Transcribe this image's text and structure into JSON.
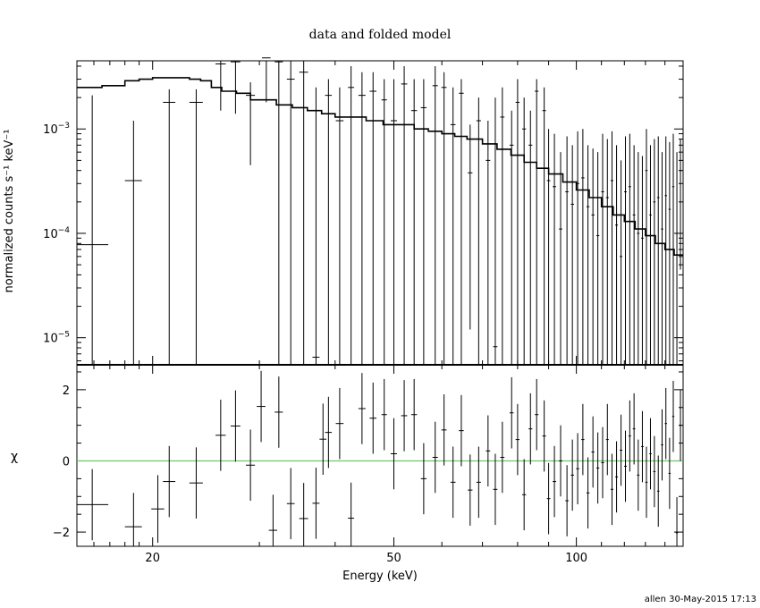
{
  "chart_data": [
    {
      "type": "scatter",
      "panel": "spectrum",
      "title": "data and folded model",
      "xlabel": "",
      "ylabel": "normalized counts s⁻¹ keV⁻¹",
      "x_scale": "log",
      "y_scale": "log",
      "xlim": [
        15,
        150
      ],
      "ylim": [
        5.5e-06,
        0.0045
      ],
      "y_ticks": [
        {
          "value": 1e-05,
          "base": "10",
          "exp": "−5"
        },
        {
          "value": 0.0001,
          "base": "10",
          "exp": "−4"
        },
        {
          "value": 0.001,
          "base": "10",
          "exp": "−3"
        }
      ],
      "data": {
        "x": [
          15.9,
          18.6,
          21.3,
          23.6,
          25.9,
          27.4,
          29.0,
          30.8,
          32.3,
          33.8,
          35.5,
          37.2,
          39.0,
          40.7,
          42.5,
          44.3,
          46.2,
          48.2,
          50.0,
          52.0,
          54.0,
          56.0,
          58.5,
          60.5,
          62.6,
          64.6,
          66.8,
          69.0,
          71.5,
          73.5,
          75.5,
          78.2,
          80.0,
          82.0,
          84.0,
          86.0,
          88.5,
          90.0,
          92.0,
          94.2,
          96.5,
          98.5,
          100.5,
          102.5,
          104.5,
          106.5,
          108.5,
          110.5,
          112.5,
          114.5,
          116.5,
          118.5,
          120.5,
          122.5,
          124.5,
          126.5,
          128.5,
          130.5,
          132.5,
          134.5,
          136.5,
          138.5,
          140.5,
          142.5,
          144.5,
          146.5,
          148.5
        ],
        "xerr": [
          1.0,
          0.6,
          0.5,
          0.6,
          0.5,
          0.5,
          0.5,
          0.5,
          0.5,
          0.5,
          0.6,
          0.5,
          0.5,
          0.6,
          0.5,
          0.6,
          0.6,
          0.5,
          0.6,
          0.6,
          0.6,
          0.6,
          0.6,
          0.6,
          0.6,
          0.6,
          0.6,
          0.6,
          0.6,
          0.6,
          0.6,
          0.6,
          0.6,
          0.6,
          0.6,
          0.6,
          0.6,
          0.6,
          0.6,
          0.6,
          0.6,
          0.6,
          0.6,
          0.6,
          0.6,
          0.6,
          0.6,
          0.6,
          0.6,
          0.6,
          0.6,
          0.6,
          0.6,
          0.6,
          0.6,
          0.6,
          0.6,
          0.6,
          0.6,
          0.6,
          0.6,
          0.6,
          0.6,
          0.6,
          0.6,
          0.6,
          0.6
        ],
        "y": [
          7.8e-05,
          0.00032,
          0.0018,
          0.0018,
          0.0042,
          0.0044,
          0.0021,
          0.0048,
          0.0044,
          0.003,
          0.0035,
          6.5e-06,
          0.0021,
          0.0012,
          0.0025,
          0.0021,
          0.0023,
          0.0019,
          0.0012,
          0.0027,
          0.0015,
          0.0016,
          0.0026,
          0.0025,
          0.0011,
          0.0022,
          0.00038,
          0.0012,
          0.0005,
          8.2e-06,
          0.0013,
          0.0007,
          0.0018,
          0.001,
          0.0007,
          0.0023,
          0.0015,
          0.00032,
          0.00028,
          0.00011,
          0.00025,
          0.00019,
          0.0003,
          0.00034,
          0.00018,
          0.00015,
          9.5e-05,
          0.00025,
          0.00022,
          0.00032,
          0.00012,
          6e-05,
          0.00025,
          0.00028,
          0.00015,
          0.0001,
          9e-05,
          0.0004,
          0.00015,
          0.0002,
          0.00022,
          0.00011,
          0.00023,
          0.00017,
          0.00028,
          0.0001,
          0.0004
        ],
        "ylo": [
          5.5e-06,
          5.5e-06,
          5.5e-06,
          5.5e-06,
          0.0015,
          0.0014,
          0.00045,
          0.0018,
          5.5e-06,
          5.5e-06,
          5.5e-06,
          5.5e-06,
          5.5e-06,
          5.5e-06,
          5.5e-06,
          5.5e-06,
          5.5e-06,
          5.5e-06,
          5.5e-06,
          5.5e-06,
          5.5e-06,
          5.5e-06,
          5.5e-06,
          5.5e-06,
          5.5e-06,
          5.5e-06,
          1.2e-05,
          5.5e-06,
          5.5e-06,
          5.5e-06,
          5.5e-06,
          5.5e-06,
          5.5e-06,
          5.5e-06,
          5.5e-06,
          5.5e-06,
          5.5e-06,
          5.5e-06,
          5.5e-06,
          5.5e-06,
          5.5e-06,
          5.5e-06,
          5.5e-06,
          5.5e-06,
          5.5e-06,
          5.5e-06,
          5.5e-06,
          5.5e-06,
          5.5e-06,
          5.5e-06,
          5.5e-06,
          5.5e-06,
          5.5e-06,
          5.5e-06,
          5.5e-06,
          5.5e-06,
          5.5e-06,
          5.5e-06,
          5.5e-06,
          5.5e-06,
          5.5e-06,
          5.5e-06,
          5.5e-06,
          5.5e-06,
          5.5e-06,
          5.5e-06,
          4.5e-05
        ],
        "yhi": [
          0.0021,
          0.0012,
          0.0024,
          0.0024,
          0.0045,
          0.0045,
          0.0028,
          0.0045,
          0.0045,
          0.0045,
          0.0045,
          0.0025,
          0.003,
          0.0025,
          0.004,
          0.0035,
          0.0035,
          0.003,
          0.003,
          0.004,
          0.003,
          0.003,
          0.004,
          0.0035,
          0.0025,
          0.003,
          0.0011,
          0.002,
          0.0012,
          0.002,
          0.0025,
          0.0015,
          0.003,
          0.002,
          0.0015,
          0.003,
          0.0025,
          0.001,
          0.0009,
          0.0006,
          0.00085,
          0.0007,
          0.00095,
          0.001,
          0.0007,
          0.00065,
          0.0006,
          0.0009,
          0.0008,
          0.00095,
          0.0007,
          0.0005,
          0.00085,
          0.0009,
          0.0007,
          0.0006,
          0.00055,
          0.001,
          0.0007,
          0.0008,
          0.00085,
          0.0006,
          0.00085,
          0.00075,
          0.0009,
          0.0006,
          0.0008
        ]
      },
      "model": {
        "x": [
          15.0,
          16.5,
          18.0,
          19.0,
          20.0,
          21.0,
          22.0,
          23.0,
          24.0,
          25.0,
          26.0,
          27.5,
          29.0,
          30.5,
          32.0,
          34.0,
          36.0,
          38.0,
          40.0,
          42.0,
          45.0,
          48.0,
          51.0,
          54.0,
          57.0,
          60.0,
          63.0,
          66.0,
          70.0,
          74.0,
          78.0,
          82.0,
          86.0,
          90.0,
          95.0,
          100.0,
          105.0,
          110.0,
          115.0,
          120.0,
          125.0,
          130.0,
          135.0,
          140.0,
          145.0,
          150.0
        ],
        "y": [
          0.0025,
          0.0026,
          0.0029,
          0.003,
          0.0031,
          0.0031,
          0.0031,
          0.003,
          0.0029,
          0.0025,
          0.0023,
          0.0022,
          0.0019,
          0.0019,
          0.0017,
          0.0016,
          0.0015,
          0.0014,
          0.0013,
          0.0013,
          0.0012,
          0.0011,
          0.0011,
          0.001,
          0.00095,
          0.0009,
          0.00085,
          0.0008,
          0.00072,
          0.00064,
          0.00056,
          0.00048,
          0.00042,
          0.00037,
          0.00031,
          0.00026,
          0.00022,
          0.00018,
          0.00015,
          0.00013,
          0.00011,
          9.5e-05,
          8e-05,
          7e-05,
          6.2e-05,
          5.5e-05
        ]
      }
    },
    {
      "type": "scatter",
      "panel": "residuals",
      "xlabel": "Energy (keV)",
      "ylabel": "χ",
      "x_scale": "log",
      "xlim": [
        15,
        150
      ],
      "ylim": [
        -2.4,
        2.7
      ],
      "x_ticks": [
        20,
        50,
        100
      ],
      "y_ticks": [
        -2,
        0,
        2
      ],
      "zero_line_color": "#66cc66",
      "data": {
        "x": [
          15.9,
          18.6,
          20.4,
          21.3,
          23.6,
          25.9,
          27.4,
          29.0,
          30.2,
          31.6,
          32.3,
          33.8,
          35.5,
          37.2,
          38.2,
          39.0,
          40.7,
          42.5,
          44.3,
          46.2,
          48.2,
          50.0,
          52.0,
          54.0,
          56.0,
          58.5,
          60.5,
          62.6,
          64.6,
          66.8,
          69.0,
          71.5,
          73.5,
          75.5,
          78.2,
          80.0,
          82.0,
          84.0,
          86.0,
          88.5,
          90.0,
          92.0,
          94.2,
          96.5,
          98.5,
          100.5,
          102.5,
          104.5,
          106.5,
          108.5,
          110.5,
          112.5,
          114.5,
          116.5,
          118.5,
          120.5,
          122.5,
          124.5,
          126.5,
          128.5,
          130.5,
          132.5,
          134.5,
          136.5,
          138.5,
          140.5,
          142.5,
          144.5,
          146.5,
          148.5
        ],
        "xerr": [
          1.0,
          0.6,
          0.5,
          0.5,
          0.6,
          0.5,
          0.5,
          0.5,
          0.5,
          0.5,
          0.5,
          0.5,
          0.6,
          0.5,
          0.5,
          0.5,
          0.6,
          0.5,
          0.6,
          0.6,
          0.5,
          0.6,
          0.6,
          0.6,
          0.6,
          0.6,
          0.6,
          0.6,
          0.6,
          0.6,
          0.6,
          0.6,
          0.6,
          0.6,
          0.6,
          0.6,
          0.6,
          0.6,
          0.6,
          0.6,
          0.6,
          0.6,
          0.6,
          0.6,
          0.6,
          0.6,
          0.6,
          0.6,
          0.6,
          0.6,
          0.6,
          0.6,
          0.6,
          0.6,
          0.6,
          0.6,
          0.6,
          0.6,
          0.6,
          0.6,
          0.6,
          0.6,
          0.6,
          0.6,
          0.6,
          0.6,
          0.6,
          0.6,
          0.6,
          0.6
        ],
        "y": [
          -1.23,
          -1.85,
          -1.35,
          -0.58,
          -0.62,
          0.72,
          0.98,
          -0.12,
          1.53,
          -1.95,
          1.37,
          -1.2,
          -1.62,
          -1.19,
          0.61,
          0.8,
          1.05,
          -1.61,
          1.47,
          1.2,
          1.3,
          0.2,
          1.27,
          1.3,
          -0.5,
          0.1,
          0.87,
          -0.6,
          0.85,
          -0.82,
          -0.6,
          0.28,
          -0.8,
          0.1,
          1.35,
          0.6,
          -0.95,
          0.9,
          1.3,
          0.7,
          -1.06,
          -0.58,
          0.0,
          -1.12,
          -0.4,
          -0.22,
          0.6,
          -0.9,
          0.25,
          -0.2,
          -0.05,
          0.6,
          -0.8,
          -0.45,
          0.3,
          -0.15,
          0.7,
          0.9,
          -0.4,
          0.4,
          -0.6,
          0.2,
          -0.3,
          -0.85,
          0.45,
          1.05,
          -0.35,
          1.25,
          -2.02,
          1.0
        ],
        "yerr": [
          1.0,
          0.95,
          0.95,
          1.0,
          1.0,
          1.0,
          1.0,
          1.0,
          1.0,
          1.0,
          1.0,
          1.0,
          1.0,
          1.0,
          1.0,
          1.0,
          1.0,
          1.0,
          1.0,
          1.0,
          1.0,
          1.0,
          1.0,
          1.0,
          1.0,
          1.0,
          1.0,
          1.0,
          1.0,
          1.0,
          1.0,
          1.0,
          1.0,
          1.0,
          1.0,
          1.0,
          1.0,
          1.0,
          1.0,
          1.0,
          1.0,
          1.0,
          1.0,
          1.0,
          1.0,
          1.0,
          1.0,
          1.0,
          1.0,
          1.0,
          1.0,
          1.0,
          1.0,
          1.0,
          1.0,
          1.0,
          1.0,
          1.0,
          1.0,
          1.0,
          1.0,
          1.0,
          1.0,
          1.0,
          1.0,
          1.0,
          1.0,
          1.0,
          1.0,
          1.0
        ]
      }
    }
  ],
  "footer": {
    "credit": "allen 30-May-2015 17:13"
  }
}
